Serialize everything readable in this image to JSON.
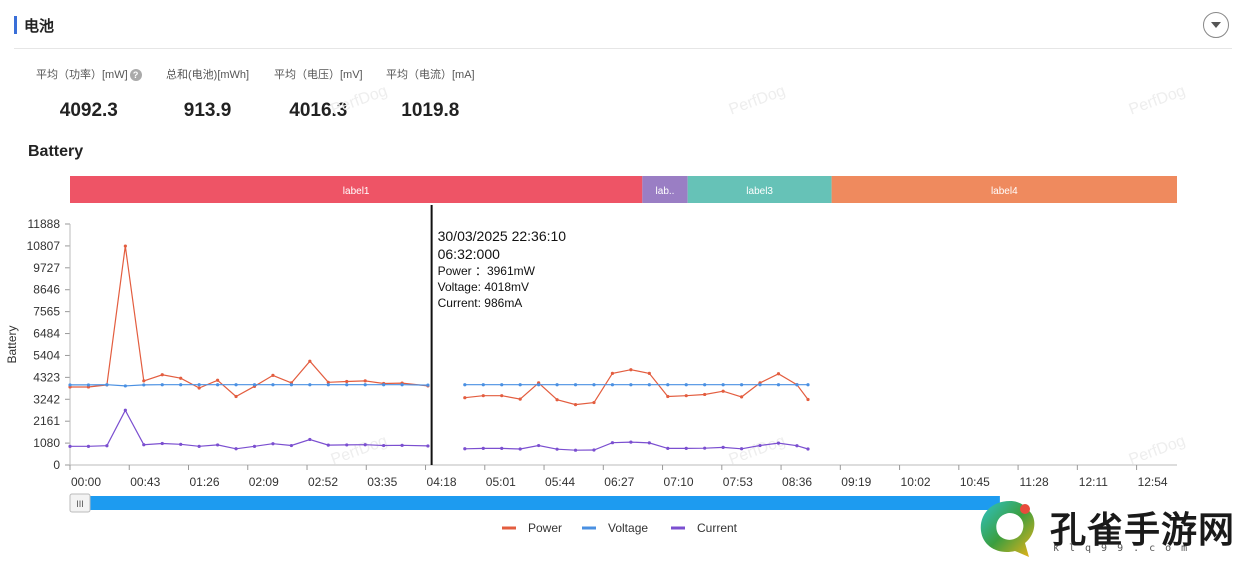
{
  "header": {
    "title": "电池"
  },
  "stats": [
    {
      "label": "平均（功率）[mW]",
      "value": "4092.3",
      "help": true
    },
    {
      "label": "总和(电池)[mWh]",
      "value": "913.9"
    },
    {
      "label": "平均（电压）[mV]",
      "value": "4016.3"
    },
    {
      "label": "平均（电流）[mA]",
      "value": "1019.8"
    }
  ],
  "section": {
    "title": "Battery"
  },
  "watermark": "PerfDog",
  "labels_bar": [
    {
      "text": "label1",
      "color": "#ee5466",
      "from": 0,
      "to": 0.517
    },
    {
      "text": "lab..",
      "color": "#9a7ec4",
      "from": 0.517,
      "to": 0.558
    },
    {
      "text": "label3",
      "color": "#66c2b7",
      "from": 0.558,
      "to": 0.688
    },
    {
      "text": "label4",
      "color": "#ef8a5e",
      "from": 0.688,
      "to": 1
    }
  ],
  "tooltip": {
    "date": "30/03/2025 22:36:10",
    "time": "06:32:000",
    "lines": [
      "Power ：3961mW",
      "Voltage: 4018mV",
      "Current: 986mA"
    ]
  },
  "chart_data": {
    "type": "line",
    "ylabel": "Battery",
    "ylim": [
      0,
      11888
    ],
    "yticks": [
      0,
      1080,
      2161,
      3242,
      4323,
      5404,
      6484,
      7565,
      8646,
      9727,
      10807,
      11888
    ],
    "xticks": [
      "00:00",
      "00:43",
      "01:26",
      "02:09",
      "02:52",
      "03:35",
      "04:18",
      "05:01",
      "05:44",
      "06:27",
      "07:10",
      "07:53",
      "08:36",
      "09:19",
      "10:02",
      "10:45",
      "11:28",
      "12:11",
      "12:54"
    ],
    "xlim": [
      0,
      1200
    ],
    "marker_t": 392,
    "gap": [
      388,
      408
    ],
    "t": [
      0,
      20,
      40,
      60,
      80,
      100,
      120,
      140,
      160,
      180,
      200,
      220,
      240,
      260,
      280,
      300,
      320,
      340,
      360,
      388,
      408,
      428,
      448,
      468,
      488,
      508,
      528,
      548,
      568,
      588,
      608,
      628,
      648,
      668,
      688,
      708,
      728,
      748,
      768,
      788,
      800
    ],
    "series": [
      {
        "name": "Power",
        "color": "#e35d3f",
        "values": [
          3850,
          3850,
          3950,
          10800,
          4150,
          4450,
          4280,
          3800,
          4180,
          3380,
          3880,
          4420,
          4050,
          5120,
          4080,
          4120,
          4150,
          4020,
          4040,
          3900,
          null,
          3320,
          3420,
          3420,
          3250,
          4050,
          3220,
          2980,
          3080,
          4520,
          4700,
          4520,
          3380,
          3420,
          3480,
          3640,
          3360,
          4050,
          4500,
          3960,
          3230
        ]
      },
      {
        "name": "Voltage",
        "color": "#4a90e2",
        "values": [
          3950,
          3950,
          3960,
          3900,
          3950,
          3960,
          3960,
          3960,
          3960,
          3960,
          3960,
          3960,
          3960,
          3960,
          3960,
          3960,
          3960,
          3960,
          3960,
          3940,
          null,
          3960,
          3960,
          3960,
          3960,
          3960,
          3960,
          3960,
          3960,
          3960,
          3960,
          3960,
          3960,
          3960,
          3960,
          3960,
          3960,
          3960,
          3960,
          3960,
          3960
        ]
      },
      {
        "name": "Current",
        "color": "#7b4fd0",
        "values": [
          920,
          920,
          950,
          2700,
          1000,
          1060,
          1020,
          920,
          990,
          800,
          920,
          1050,
          960,
          1260,
          980,
          990,
          1000,
          960,
          970,
          940,
          null,
          800,
          820,
          820,
          790,
          960,
          780,
          730,
          740,
          1100,
          1130,
          1090,
          820,
          820,
          830,
          870,
          800,
          960,
          1080,
          950,
          790
        ]
      }
    ]
  },
  "legend": [
    {
      "label": "Power",
      "color": "#e35d3f"
    },
    {
      "label": "Voltage",
      "color": "#4a90e2"
    },
    {
      "label": "Current",
      "color": "#7b4fd0"
    }
  ],
  "scrollbar": {
    "handle_icon": "III",
    "position": 0,
    "extent": 0.84
  },
  "logo": {
    "text": "孔雀手游网",
    "sub": "klq99.com"
  }
}
